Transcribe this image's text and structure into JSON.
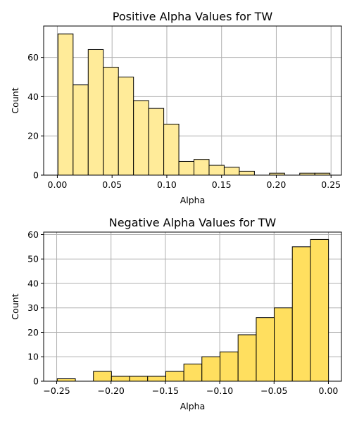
{
  "chart_data": [
    {
      "type": "bar",
      "title": "Positive Alpha Values for TW",
      "xlabel": "Alpha",
      "ylabel": "Count",
      "xlim": [
        -0.0125,
        0.2595
      ],
      "ylim": [
        0,
        76
      ],
      "xticks": [
        0.0,
        0.05,
        0.1,
        0.15,
        0.2,
        0.25
      ],
      "xtick_labels": [
        "0.00",
        "0.05",
        "0.10",
        "0.15",
        "0.20",
        "0.25"
      ],
      "yticks": [
        0,
        20,
        40,
        60
      ],
      "ytick_labels": [
        "0",
        "20",
        "40",
        "60"
      ],
      "bin_edges": [
        0.0006,
        0.0144,
        0.0282,
        0.042,
        0.0558,
        0.0696,
        0.0834,
        0.0972,
        0.111,
        0.1248,
        0.1386,
        0.1524,
        0.1662,
        0.18,
        0.1938,
        0.2076,
        0.2214,
        0.2352,
        0.249
      ],
      "values": [
        72,
        46,
        64,
        55,
        50,
        38,
        34,
        26,
        7,
        8,
        5,
        4,
        2,
        0,
        1,
        0,
        1,
        1
      ],
      "bar_color": "#ffeb99",
      "grid": true
    },
    {
      "type": "bar",
      "title": "Negative Alpha Values for TW",
      "xlabel": "Alpha",
      "ylabel": "Count",
      "xlim": [
        -0.262,
        0.012
      ],
      "ylim": [
        0,
        61
      ],
      "xticks": [
        -0.25,
        -0.2,
        -0.15,
        -0.1,
        -0.05,
        0.0
      ],
      "xtick_labels": [
        "−0.25",
        "−0.20",
        "−0.15",
        "−0.10",
        "−0.05",
        "0.00"
      ],
      "yticks": [
        0,
        10,
        20,
        30,
        40,
        50,
        60
      ],
      "ytick_labels": [
        "0",
        "10",
        "20",
        "30",
        "40",
        "50",
        "60"
      ],
      "bin_edges": [
        -0.2495,
        -0.2328,
        -0.2162,
        -0.1996,
        -0.1829,
        -0.1663,
        -0.1496,
        -0.133,
        -0.1164,
        -0.0997,
        -0.0831,
        -0.0664,
        -0.0498,
        -0.0332,
        -0.0165,
        0.0001
      ],
      "values": [
        1,
        0,
        4,
        2,
        2,
        2,
        4,
        7,
        10,
        12,
        19,
        26,
        30,
        55,
        58
      ],
      "bar_color": "#ffdf5f",
      "grid": true
    }
  ]
}
